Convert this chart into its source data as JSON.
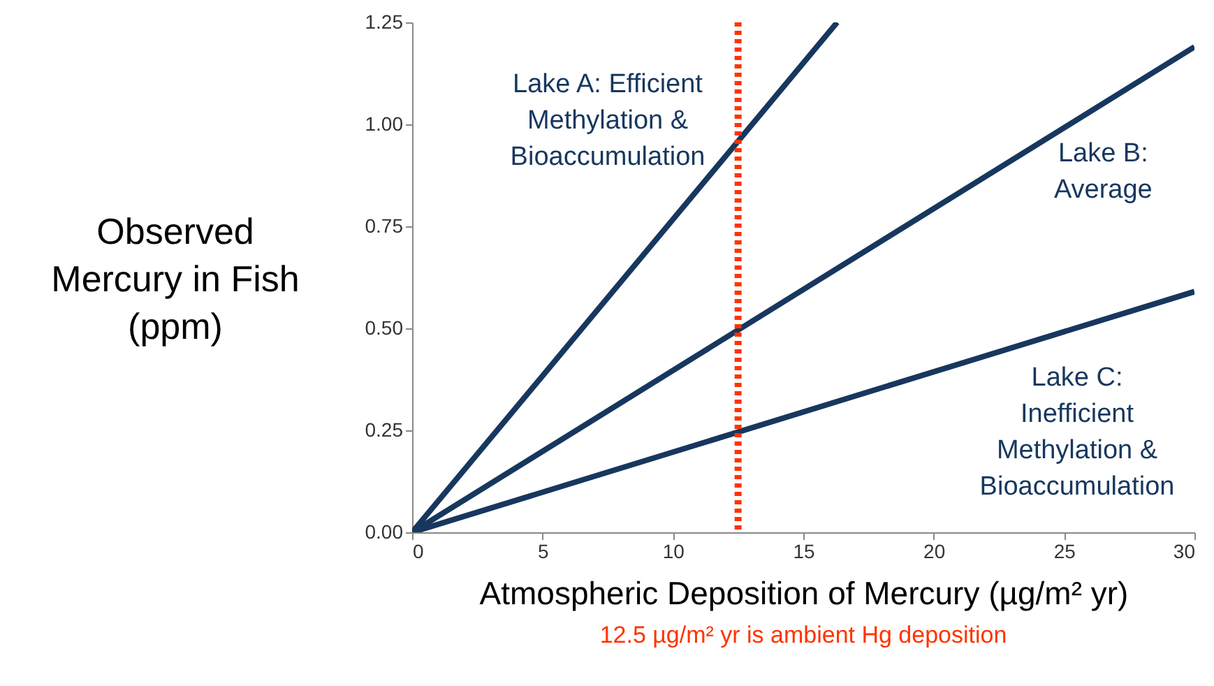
{
  "chart_data": {
    "type": "line",
    "xlabel": "Atmospheric Deposition of Mercury (µg/m² yr)",
    "ylabel": "Observed\nMercury in Fish\n(ppm)",
    "xlim": [
      0,
      30
    ],
    "xticks": [
      0,
      5,
      10,
      15,
      20,
      25,
      30
    ],
    "ylim": [
      0,
      1.25
    ],
    "yticks": [
      {
        "value": 0,
        "label": "0.00"
      },
      {
        "value": 0.25,
        "label": "0.25"
      },
      {
        "value": 0.5,
        "label": "0.50"
      },
      {
        "value": 0.75,
        "label": "0.75"
      },
      {
        "value": 1,
        "label": "1.00"
      },
      {
        "value": 1.25,
        "label": "1.25"
      }
    ],
    "grid": false,
    "marker": "none",
    "line_style": "solid",
    "series": [
      {
        "name": "Lake A: Efficient\nMethylation &\nBioaccumulation",
        "color": "#17375e",
        "x": [
          0,
          16.3
        ],
        "values": [
          0,
          1.25
        ]
      },
      {
        "name": "Lake B:\nAverage",
        "color": "#17375e",
        "x": [
          0,
          30
        ],
        "values": [
          0,
          1.19
        ]
      },
      {
        "name": "Lake C:\nInefficient\nMethylation &\nBioaccumulation",
        "color": "#17375e",
        "x": [
          0,
          30
        ],
        "values": [
          0,
          0.59
        ]
      }
    ],
    "ref_lines": [
      {
        "axis": "x",
        "value": 12.5,
        "label": "12.5 µg/m² yr is ambient Hg deposition",
        "color": "#ff3300",
        "line_style": "dotted"
      }
    ]
  }
}
